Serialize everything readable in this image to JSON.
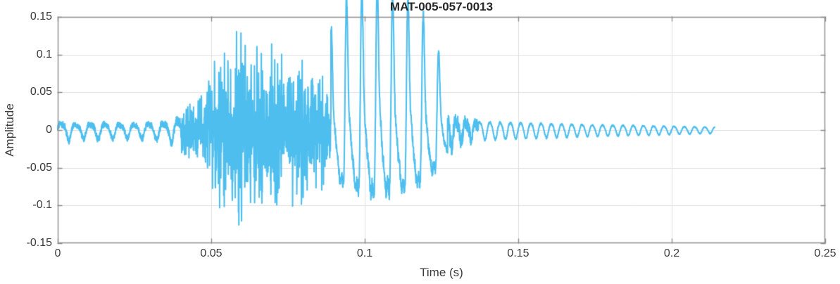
{
  "chart_data": {
    "type": "line",
    "title": "MAT-005-057-0013",
    "xlabel": "Time (s)",
    "ylabel": "Amplitude",
    "xlim": [
      0,
      0.25
    ],
    "ylim": [
      -0.15,
      0.15
    ],
    "xticks": [
      0,
      0.05,
      0.1,
      0.15,
      0.2,
      0.25
    ],
    "xtick_labels": [
      "0",
      "0.05",
      "0.1",
      "0.15",
      "0.2",
      "0.25"
    ],
    "yticks": [
      -0.15,
      -0.1,
      -0.05,
      0,
      0.05,
      0.1,
      0.15
    ],
    "ytick_labels": [
      "-0.15",
      "-0.1",
      "-0.05",
      "0",
      "0.05",
      "0.1",
      "0.15"
    ],
    "grid": true,
    "legend": null,
    "line_color": "#4DBEEE",
    "axis_color": "#8c8c8c",
    "grid_color": "#e0e0e0",
    "text_color": "#3b3b3b",
    "title_color": "#262626",
    "background_color": "#ffffff",
    "signal": {
      "description": "Speech-like acoustic waveform: quiet ~210 Hz oscillation (0-0.04 s), broadband noise burst peaking near +/-0.15 around 0.058 s (0.04-0.089 s), voiced periodic section with ~200 Hz pitch peaks up to 0.145 (0.089-0.127 s), then a slowly decaying ~300 Hz ringing tail ending at 0.214 s.",
      "sample_rate_hz": 16000,
      "duration_s": 0.214,
      "seed": 7,
      "segments": [
        {
          "name": "onset-oscillation",
          "type": "tone",
          "t_start": 0.0,
          "t_end": 0.04,
          "freq_hz": 210,
          "h2": 0.3,
          "noise": 0.3,
          "envelope": [
            [
              0,
              0.012
            ],
            [
              0.0025,
              0.017
            ],
            [
              0.006,
              0.012
            ],
            [
              0.012,
              0.014
            ],
            [
              0.02,
              0.012
            ],
            [
              0.028,
              0.013
            ],
            [
              0.034,
              0.015
            ],
            [
              0.04,
              0.022
            ]
          ]
        },
        {
          "name": "noise-burst",
          "type": "noise",
          "t_start": 0.04,
          "t_end": 0.089,
          "tone_hz": 2100,
          "tone_mix": 0.22,
          "envelope": [
            [
              0.04,
              0.032
            ],
            [
              0.044,
              0.048
            ],
            [
              0.048,
              0.068
            ],
            [
              0.052,
              0.1
            ],
            [
              0.0555,
              0.13
            ],
            [
              0.0585,
              0.15
            ],
            [
              0.062,
              0.125
            ],
            [
              0.066,
              0.11
            ],
            [
              0.07,
              0.125
            ],
            [
              0.074,
              0.11
            ],
            [
              0.078,
              0.115
            ],
            [
              0.082,
              0.1
            ],
            [
              0.086,
              0.088
            ],
            [
              0.089,
              0.072
            ]
          ]
        },
        {
          "name": "voiced-section",
          "type": "voiced",
          "t_start": 0.089,
          "t_end": 0.127,
          "f0_hz": 200,
          "noise": 0.07,
          "envelope": [
            [
              0.089,
              0.1
            ],
            [
              0.094,
              0.128
            ],
            [
              0.099,
              0.138
            ],
            [
              0.1035,
              0.145
            ],
            [
              0.109,
              0.134
            ],
            [
              0.114,
              0.13
            ],
            [
              0.119,
              0.115
            ],
            [
              0.1235,
              0.082
            ],
            [
              0.127,
              0.05
            ]
          ]
        },
        {
          "name": "release-transition",
          "type": "tone",
          "t_start": 0.127,
          "t_end": 0.137,
          "freq_hz": 310,
          "h2": 0.2,
          "noise": 0.45,
          "envelope": [
            [
              0.127,
              0.034
            ],
            [
              0.131,
              0.024
            ],
            [
              0.137,
              0.016
            ]
          ]
        },
        {
          "name": "decaying-tail",
          "type": "tone",
          "t_start": 0.137,
          "t_end": 0.214,
          "freq_hz": 300,
          "h2": 0.12,
          "noise": 0.12,
          "envelope": [
            [
              0.137,
              0.0135
            ],
            [
              0.155,
              0.011
            ],
            [
              0.175,
              0.0085
            ],
            [
              0.195,
              0.0066
            ],
            [
              0.214,
              0.0045
            ]
          ]
        }
      ]
    }
  }
}
